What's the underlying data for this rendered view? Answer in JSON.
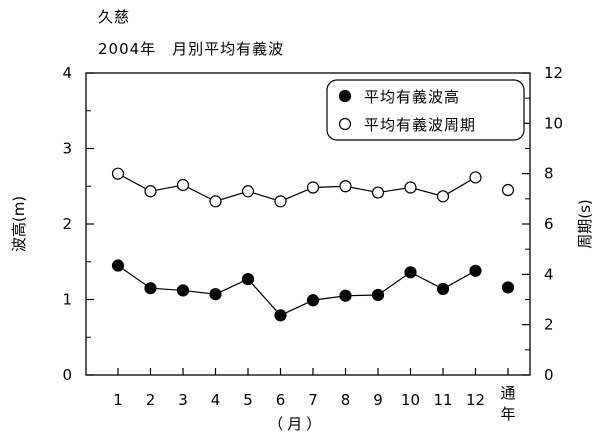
{
  "header": {
    "location": "久慈",
    "subtitle": "2004年　月別平均有義波"
  },
  "chart_data": {
    "type": "line",
    "categories": [
      "1",
      "2",
      "3",
      "4",
      "5",
      "6",
      "7",
      "8",
      "9",
      "10",
      "11",
      "12",
      "通年"
    ],
    "xlabel": "（月）",
    "annual_label": [
      "通",
      "年"
    ],
    "y_left": {
      "label": "波高(m)",
      "ylim": [
        0,
        4
      ],
      "ticks": [
        "0",
        "1",
        "2",
        "3",
        "4"
      ]
    },
    "y_right": {
      "label": "周期(s)",
      "ylim": [
        0,
        12
      ],
      "ticks": [
        "0",
        "2",
        "4",
        "6",
        "8",
        "10",
        "12"
      ]
    },
    "series": [
      {
        "name": "平均有義波高",
        "axis": "left",
        "marker": "filled",
        "monthly": [
          1.45,
          1.15,
          1.12,
          1.07,
          1.27,
          0.79,
          0.99,
          1.05,
          1.06,
          1.36,
          1.14,
          1.38
        ],
        "annual": 1.16
      },
      {
        "name": "平均有義波周期",
        "axis": "right",
        "marker": "open",
        "monthly": [
          8.0,
          7.3,
          7.55,
          6.9,
          7.3,
          6.9,
          7.45,
          7.5,
          7.25,
          7.45,
          7.1,
          7.85
        ],
        "annual": 7.35
      }
    ],
    "legend_position": "top-right",
    "grid": false
  }
}
